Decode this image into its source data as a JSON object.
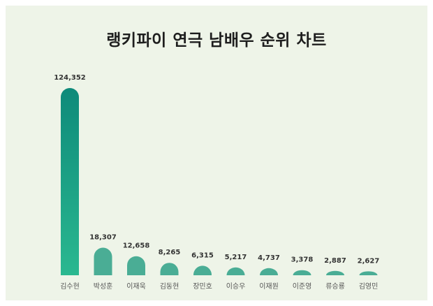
{
  "chart_data": {
    "type": "bar",
    "title": "랭키파이 연극 남배우 순위 차트",
    "categories": [
      "김수현",
      "박성훈",
      "이재욱",
      "김동현",
      "장민호",
      "이승우",
      "이재원",
      "이준영",
      "류승룡",
      "김영민"
    ],
    "values": [
      124352,
      18307,
      12658,
      8265,
      6315,
      5217,
      4737,
      3378,
      2887,
      2627
    ],
    "value_labels": [
      "124,352",
      "18,307",
      "12,658",
      "8,265",
      "6,315",
      "5,217",
      "4,737",
      "3,378",
      "2,887",
      "2,627"
    ],
    "ylim": [
      0,
      124352
    ],
    "grid": false,
    "legend": "none",
    "colors": {
      "top_bar_top": "#0e8a7a",
      "top_bar_bottom": "#2ab890",
      "other_bars": "#4aad95",
      "background": "#eef4e8"
    }
  }
}
